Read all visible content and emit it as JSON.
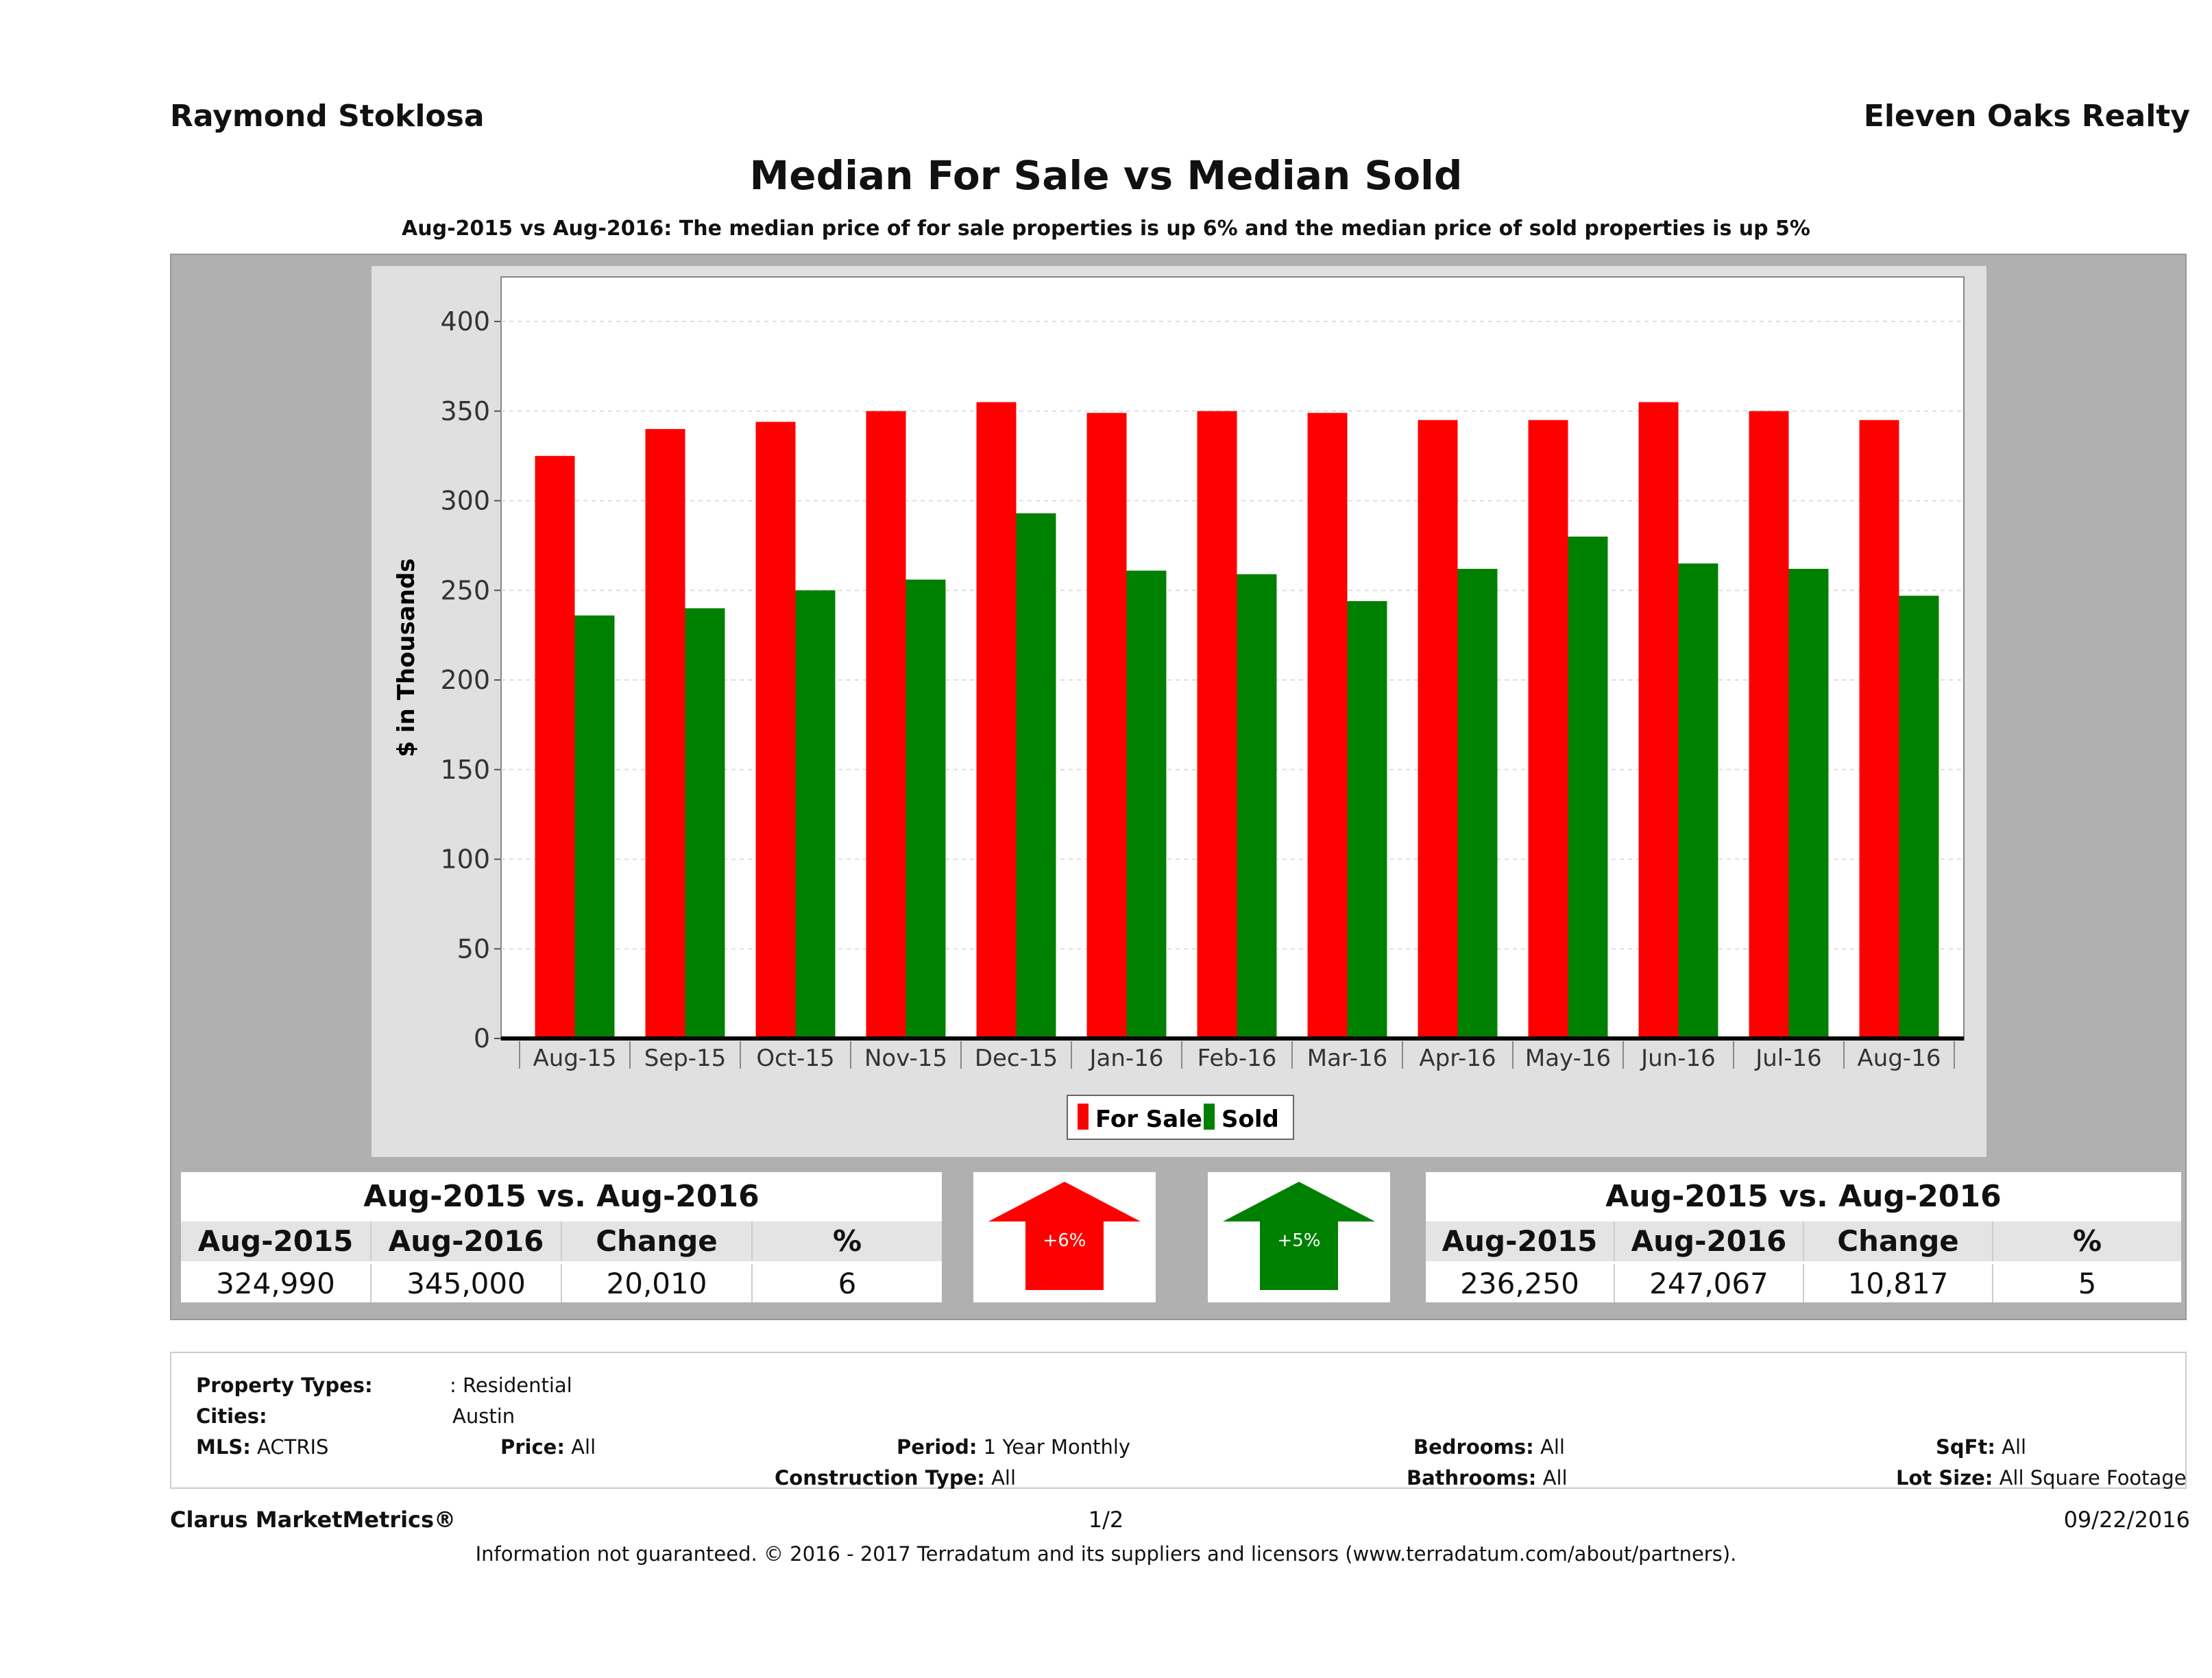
{
  "header": {
    "agent": "Raymond Stoklosa",
    "company": "Eleven Oaks Realty"
  },
  "title": "Median For Sale vs Median Sold",
  "subtitle": "Aug-2015 vs Aug-2016: The median price of for sale properties is up 6% and the median price of sold properties is up 5%",
  "colors": {
    "for_sale": "#ff0000",
    "sold": "#008000",
    "panel": "#b0b0b0"
  },
  "chart_data": {
    "type": "bar",
    "ylabel": "$ in Thousands",
    "xlabel": "",
    "ylim": [
      0,
      420
    ],
    "yticks": [
      0,
      50,
      100,
      150,
      200,
      250,
      300,
      350,
      400
    ],
    "grid": true,
    "legend": "bottom",
    "categories": [
      "Aug-15",
      "Sep-15",
      "Oct-15",
      "Nov-15",
      "Dec-15",
      "Jan-16",
      "Feb-16",
      "Mar-16",
      "Apr-16",
      "May-16",
      "Jun-16",
      "Jul-16",
      "Aug-16"
    ],
    "series": [
      {
        "name": "For Sale",
        "color": "#ff0000",
        "values": [
          325,
          340,
          344,
          350,
          355,
          349,
          350,
          349,
          345,
          345,
          355,
          350,
          345
        ]
      },
      {
        "name": "Sold",
        "color": "#008000",
        "values": [
          236,
          240,
          250,
          256,
          293,
          261,
          259,
          244,
          262,
          280,
          265,
          262,
          247
        ]
      }
    ]
  },
  "for_sale_stats": {
    "title": "Aug-2015 vs. Aug-2016",
    "headers": [
      "Aug-2015",
      "Aug-2016",
      "Change",
      "%"
    ],
    "values": [
      "324,990",
      "345,000",
      "20,010",
      "6"
    ],
    "arrow_label": "+6%"
  },
  "sold_stats": {
    "title": "Aug-2015 vs. Aug-2016",
    "headers": [
      "Aug-2015",
      "Aug-2016",
      "Change",
      "%"
    ],
    "values": [
      "236,250",
      "247,067",
      "10,817",
      "5"
    ],
    "arrow_label": "+5%"
  },
  "criteria": {
    "property_types_label": "Property Types:",
    "property_types_value": ": Residential",
    "cities_label": "Cities:",
    "cities_value": "Austin",
    "mls_label": "MLS:",
    "mls_value": "ACTRIS",
    "price_label": "Price:",
    "price_value": "All",
    "period_label": "Period:",
    "period_value": "1 Year Monthly",
    "construction_label": "Construction Type:",
    "construction_value": "All",
    "bedrooms_label": "Bedrooms:",
    "bedrooms_value": "All",
    "bathrooms_label": "Bathrooms:",
    "bathrooms_value": "All",
    "sqft_label": "SqFt:",
    "sqft_value": "All",
    "lot_label": "Lot Size:",
    "lot_value": "All Square Footage"
  },
  "footer": {
    "brand": "Clarus MarketMetrics®",
    "page": "1/2",
    "date": "09/22/2016",
    "disclaimer": "Information not guaranteed. © 2016 - 2017 Terradatum and its suppliers and licensors (www.terradatum.com/about/partners)."
  }
}
